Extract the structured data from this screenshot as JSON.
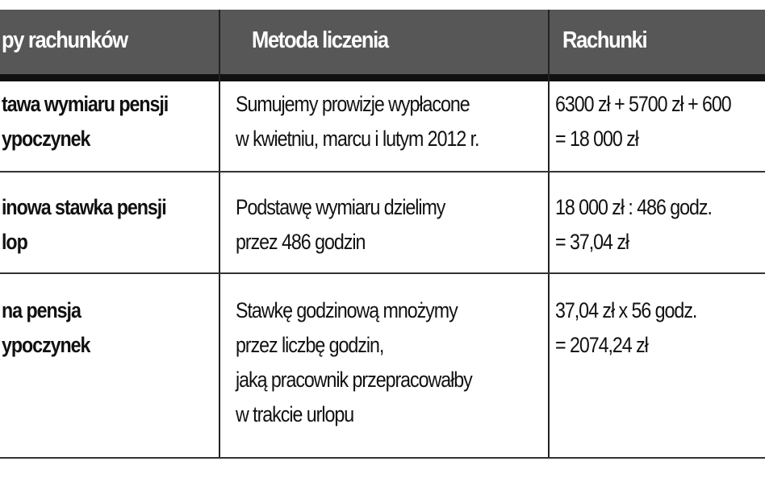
{
  "headers": [
    "py rachunków",
    "Metoda liczenia",
    "Rachunki"
  ],
  "rows": [
    {
      "step": [
        "tawa wymiaru pensji",
        "ypoczynek"
      ],
      "method": [
        "Sumujemy prowizje wypłacone",
        "w kwietniu, marcu i lutym 2012 r."
      ],
      "calc": [
        "6300 zł + 5700 zł + 600",
        "= 18 000 zł"
      ]
    },
    {
      "step": [
        "inowa stawka pensji",
        "lop"
      ],
      "method": [
        "Podstawę wymiaru dzielimy",
        "przez 486 godzin"
      ],
      "calc": [
        "18 000 zł : 486 godz.",
        "= 37,04 zł"
      ]
    },
    {
      "step": [
        "na pensja",
        "ypoczynek"
      ],
      "method": [
        "Stawkę godzinową mnożymy",
        "przez liczbę godzin,",
        "jaką pracownik przepracowałby",
        "w trakcie urlopu"
      ],
      "calc": [
        "37,04 zł x 56 godz.",
        "= 2074,24 zł"
      ]
    }
  ],
  "colors": {
    "header_bg": "#575757",
    "header_text": "#ffffff",
    "rule": "#111111"
  }
}
